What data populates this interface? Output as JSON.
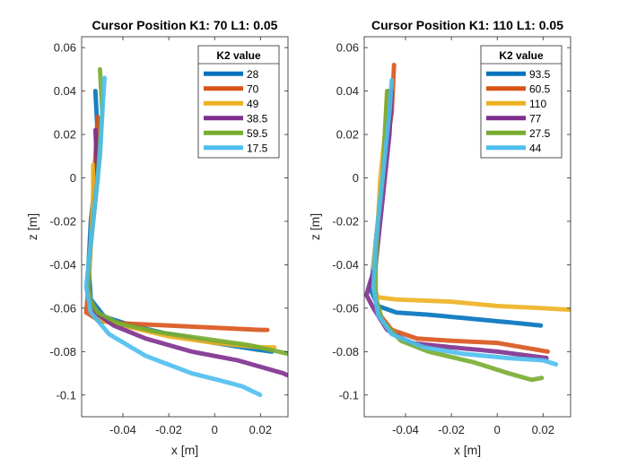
{
  "chart_data": [
    {
      "type": "line",
      "title": "Cursor Position K1: 70 L1: 0.05",
      "xlabel": "x [m]",
      "ylabel": "z [m]",
      "xlim": [
        -0.058,
        0.032
      ],
      "ylim": [
        -0.11,
        0.065
      ],
      "xticks": [
        -0.04,
        -0.02,
        0,
        0.02
      ],
      "xtick_labels": [
        "-0.04",
        "-0.02",
        "0",
        "0.02"
      ],
      "yticks": [
        -0.1,
        -0.08,
        -0.06,
        -0.04,
        -0.02,
        0,
        0.02,
        0.04,
        0.06
      ],
      "ytick_labels": [
        "-0.1",
        "-0.08",
        "-0.06",
        "-0.04",
        "-0.02",
        "0",
        "0.02",
        "0.04",
        "0.06"
      ],
      "grid": false,
      "legend": {
        "title": "K2 value",
        "position": "top-right"
      },
      "series": [
        {
          "name": "28",
          "color": "#0072BD",
          "points": [
            [
              -0.052,
              0.04
            ],
            [
              -0.051,
              0.02
            ],
            [
              -0.052,
              0.0
            ],
            [
              -0.054,
              -0.02
            ],
            [
              -0.055,
              -0.04
            ],
            [
              -0.054,
              -0.056
            ],
            [
              -0.048,
              -0.064
            ],
            [
              -0.036,
              -0.068
            ],
            [
              -0.02,
              -0.072
            ],
            [
              0.0,
              -0.076
            ],
            [
              0.018,
              -0.079
            ],
            [
              0.025,
              -0.08
            ]
          ]
        },
        {
          "name": "70",
          "color": "#D95319",
          "points": [
            [
              -0.051,
              0.028
            ],
            [
              -0.052,
              0.01
            ],
            [
              -0.053,
              -0.01
            ],
            [
              -0.054,
              -0.03
            ],
            [
              -0.055,
              -0.05
            ],
            [
              -0.056,
              -0.062
            ],
            [
              -0.05,
              -0.066
            ],
            [
              -0.04,
              -0.067
            ],
            [
              -0.02,
              -0.068
            ],
            [
              0.0,
              -0.069
            ],
            [
              0.02,
              -0.07
            ],
            [
              0.023,
              -0.07
            ]
          ]
        },
        {
          "name": "49",
          "color": "#EDB120",
          "points": [
            [
              -0.053,
              0.006
            ],
            [
              -0.053,
              -0.01
            ],
            [
              -0.054,
              -0.03
            ],
            [
              -0.055,
              -0.05
            ],
            [
              -0.054,
              -0.06
            ],
            [
              -0.048,
              -0.066
            ],
            [
              -0.036,
              -0.069
            ],
            [
              -0.02,
              -0.073
            ],
            [
              0.0,
              -0.076
            ],
            [
              0.02,
              -0.078
            ],
            [
              0.026,
              -0.078
            ]
          ]
        },
        {
          "name": "38.5",
          "color": "#7E2F8E",
          "points": [
            [
              -0.052,
              0.022
            ],
            [
              -0.051,
              0.0
            ],
            [
              -0.053,
              -0.02
            ],
            [
              -0.055,
              -0.04
            ],
            [
              -0.055,
              -0.055
            ],
            [
              -0.052,
              -0.062
            ],
            [
              -0.044,
              -0.068
            ],
            [
              -0.03,
              -0.074
            ],
            [
              -0.01,
              -0.08
            ],
            [
              0.01,
              -0.084
            ],
            [
              0.03,
              -0.09
            ],
            [
              0.032,
              -0.091
            ]
          ]
        },
        {
          "name": "59.5",
          "color": "#77AC30",
          "points": [
            [
              -0.05,
              0.05
            ],
            [
              -0.049,
              0.03
            ],
            [
              -0.051,
              0.0
            ],
            [
              -0.053,
              -0.02
            ],
            [
              -0.055,
              -0.04
            ],
            [
              -0.055,
              -0.055
            ],
            [
              -0.051,
              -0.062
            ],
            [
              -0.042,
              -0.067
            ],
            [
              -0.025,
              -0.071
            ],
            [
              -0.005,
              -0.074
            ],
            [
              0.015,
              -0.077
            ],
            [
              0.032,
              -0.081
            ]
          ]
        },
        {
          "name": "17.5",
          "color": "#4DBEEE",
          "points": [
            [
              -0.048,
              0.046
            ],
            [
              -0.049,
              0.03
            ],
            [
              -0.05,
              0.01
            ],
            [
              -0.052,
              -0.01
            ],
            [
              -0.054,
              -0.03
            ],
            [
              -0.056,
              -0.05
            ],
            [
              -0.054,
              -0.062
            ],
            [
              -0.046,
              -0.072
            ],
            [
              -0.03,
              -0.082
            ],
            [
              -0.01,
              -0.09
            ],
            [
              0.005,
              -0.094
            ],
            [
              0.012,
              -0.096
            ],
            [
              0.02,
              -0.1
            ]
          ]
        }
      ]
    },
    {
      "type": "line",
      "title": "Cursor Position K1: 110 L1: 0.05",
      "xlabel": "x [m]",
      "ylabel": "z [m]",
      "xlim": [
        -0.058,
        0.032
      ],
      "ylim": [
        -0.11,
        0.065
      ],
      "xticks": [
        -0.04,
        -0.02,
        0,
        0.02
      ],
      "xtick_labels": [
        "-0.04",
        "-0.02",
        "0",
        "0.02"
      ],
      "yticks": [
        -0.1,
        -0.08,
        -0.06,
        -0.04,
        -0.02,
        0,
        0.02,
        0.04,
        0.06
      ],
      "ytick_labels": [
        "-0.1",
        "-0.08",
        "-0.06",
        "-0.04",
        "-0.02",
        "0",
        "0.02",
        "0.04",
        "0.06"
      ],
      "grid": false,
      "legend": {
        "title": "K2 value",
        "position": "top-right"
      },
      "series": [
        {
          "name": "93.5",
          "color": "#0072BD",
          "points": [
            [
              -0.047,
              0.04
            ],
            [
              -0.048,
              0.02
            ],
            [
              -0.05,
              0.0
            ],
            [
              -0.052,
              -0.02
            ],
            [
              -0.054,
              -0.04
            ],
            [
              -0.055,
              -0.052
            ],
            [
              -0.052,
              -0.059
            ],
            [
              -0.044,
              -0.062
            ],
            [
              -0.03,
              -0.063
            ],
            [
              -0.01,
              -0.065
            ],
            [
              0.01,
              -0.067
            ],
            [
              0.019,
              -0.068
            ]
          ]
        },
        {
          "name": "60.5",
          "color": "#D95319",
          "points": [
            [
              -0.045,
              0.052
            ],
            [
              -0.046,
              0.03
            ],
            [
              -0.049,
              0.01
            ],
            [
              -0.051,
              -0.01
            ],
            [
              -0.053,
              -0.03
            ],
            [
              -0.054,
              -0.05
            ],
            [
              -0.052,
              -0.062
            ],
            [
              -0.046,
              -0.07
            ],
            [
              -0.035,
              -0.074
            ],
            [
              -0.02,
              -0.075
            ],
            [
              0.0,
              -0.076
            ],
            [
              0.022,
              -0.08
            ]
          ]
        },
        {
          "name": "110",
          "color": "#EDB120",
          "points": [
            [
              -0.048,
              0.04
            ],
            [
              -0.049,
              0.02
            ],
            [
              -0.051,
              0.0
            ],
            [
              -0.052,
              -0.02
            ],
            [
              -0.054,
              -0.04
            ],
            [
              -0.054,
              -0.05
            ],
            [
              -0.052,
              -0.055
            ],
            [
              -0.044,
              -0.056
            ],
            [
              -0.02,
              -0.057
            ],
            [
              0.0,
              -0.059
            ],
            [
              0.02,
              -0.06
            ],
            [
              0.036,
              -0.061
            ]
          ]
        },
        {
          "name": "77",
          "color": "#7E2F8E",
          "points": [
            [
              -0.046,
              0.04
            ],
            [
              -0.047,
              0.02
            ],
            [
              -0.049,
              0.0
            ],
            [
              -0.051,
              -0.02
            ],
            [
              -0.053,
              -0.04
            ],
            [
              -0.056,
              -0.05
            ],
            [
              -0.057,
              -0.054
            ],
            [
              -0.054,
              -0.06
            ],
            [
              -0.048,
              -0.07
            ],
            [
              -0.038,
              -0.076
            ],
            [
              -0.02,
              -0.078
            ],
            [
              0.0,
              -0.08
            ],
            [
              0.022,
              -0.083
            ]
          ]
        },
        {
          "name": "27.5",
          "color": "#77AC30",
          "points": [
            [
              -0.048,
              0.04
            ],
            [
              -0.049,
              0.02
            ],
            [
              -0.05,
              0.0
            ],
            [
              -0.052,
              -0.02
            ],
            [
              -0.053,
              -0.04
            ],
            [
              -0.053,
              -0.055
            ],
            [
              -0.05,
              -0.066
            ],
            [
              -0.042,
              -0.075
            ],
            [
              -0.03,
              -0.08
            ],
            [
              -0.01,
              -0.085
            ],
            [
              0.005,
              -0.09
            ],
            [
              0.015,
              -0.093
            ],
            [
              0.02,
              -0.092
            ]
          ]
        },
        {
          "name": "44",
          "color": "#4DBEEE",
          "points": [
            [
              -0.046,
              0.045
            ],
            [
              -0.047,
              0.03
            ],
            [
              -0.049,
              0.01
            ],
            [
              -0.051,
              -0.01
            ],
            [
              -0.053,
              -0.03
            ],
            [
              -0.054,
              -0.05
            ],
            [
              -0.052,
              -0.063
            ],
            [
              -0.046,
              -0.072
            ],
            [
              -0.032,
              -0.078
            ],
            [
              -0.015,
              -0.081
            ],
            [
              0.005,
              -0.083
            ],
            [
              0.02,
              -0.084
            ],
            [
              0.026,
              -0.086
            ]
          ]
        }
      ]
    }
  ]
}
